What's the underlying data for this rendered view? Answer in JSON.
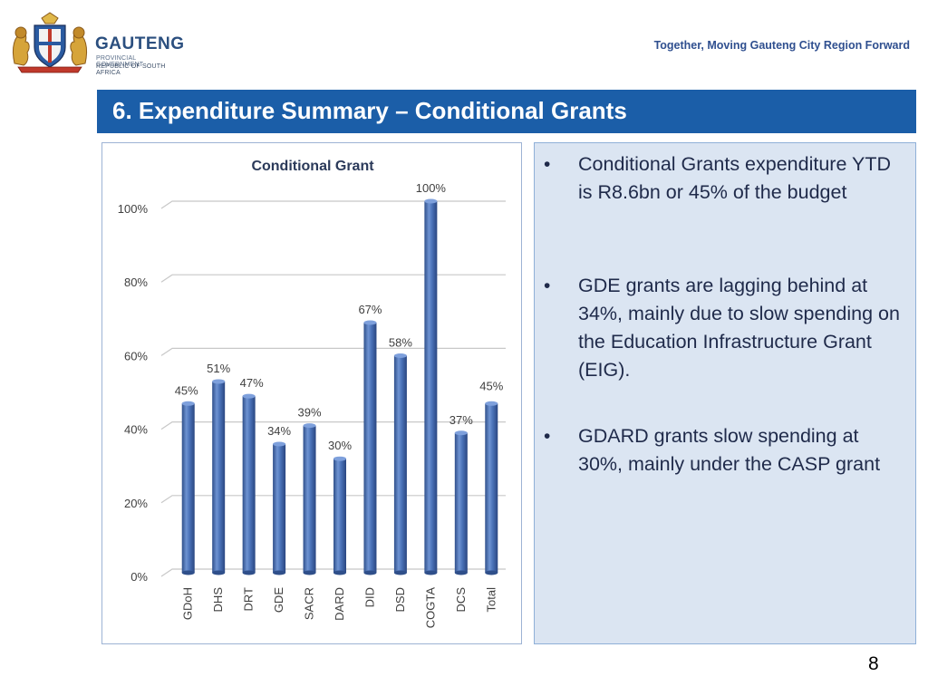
{
  "header": {
    "logo_name": "GAUTENG",
    "logo_sub1": "PROVINCIAL GOVERNMENT",
    "logo_sub2": "REPUBLIC OF SOUTH AFRICA",
    "tagline": "Together, Moving Gauteng City Region Forward"
  },
  "slide_title": "6. Expenditure Summary – Conditional Grants",
  "bullets": [
    {
      "text": "Conditional Grants expenditure YTD is R8.6bn or 45% of the budget"
    },
    {
      "text": "GDE grants are lagging behind at 34%, mainly due to slow spending on the Education Infrastructure Grant (EIG)."
    },
    {
      "text": "GDARD grants slow spending at 30%, mainly under the CASP grant"
    }
  ],
  "bullet_symbol": "•",
  "page_number": "8",
  "colors": {
    "title_bar": "#1b5ea8",
    "bar_fill": "#4a72b8",
    "panel_bg": "#dbe5f2"
  },
  "chart_data": {
    "type": "bar",
    "title": "Conditional Grant",
    "categories": [
      "GDoH",
      "DHS",
      "DRT",
      "GDE",
      "SACR",
      "DARD",
      "DID",
      "DSD",
      "COGTA",
      "DCS",
      "Total"
    ],
    "values": [
      45,
      51,
      47,
      34,
      39,
      30,
      67,
      58,
      100,
      37,
      45
    ],
    "data_labels": [
      "45%",
      "51%",
      "47%",
      "34%",
      "39%",
      "30%",
      "67%",
      "58%",
      "100%",
      "37%",
      "45%"
    ],
    "ylim": [
      0,
      100
    ],
    "yticks": [
      0,
      20,
      40,
      60,
      80,
      100
    ],
    "ytick_labels": [
      "0%",
      "20%",
      "40%",
      "60%",
      "80%",
      "100%"
    ],
    "grid": true,
    "xlabel": "",
    "ylabel": ""
  }
}
